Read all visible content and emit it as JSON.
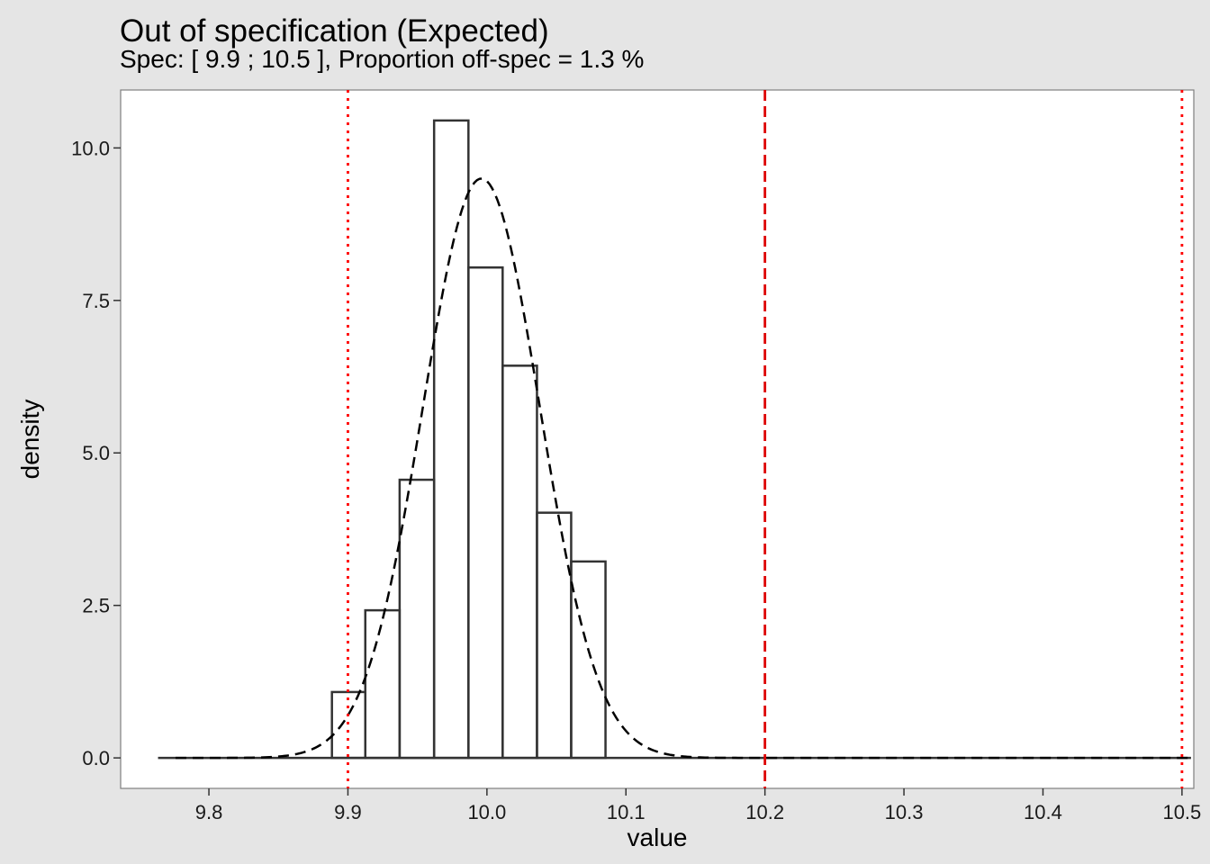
{
  "chart_data": {
    "type": "bar",
    "title": "Out of specification (Expected)",
    "subtitle": "Spec: [ 9.9 ; 10.5 ], Proportion off-spec =  1.3 %",
    "xlabel": "value",
    "ylabel": "density",
    "xlim": [
      9.7365,
      10.5085
    ],
    "ylim": [
      -0.5,
      10.95
    ],
    "x_ticks": [
      9.8,
      9.9,
      10.0,
      10.1,
      10.2,
      10.3,
      10.4,
      10.5
    ],
    "x_tick_labels": [
      "9.8",
      "9.9",
      "10.0",
      "10.1",
      "10.2",
      "10.3",
      "10.4",
      "10.5"
    ],
    "y_ticks": [
      0,
      2.5,
      5,
      7.5,
      10
    ],
    "y_tick_labels": [
      "0.0",
      "2.5",
      "5.0",
      "7.5",
      "10.0"
    ],
    "grid": false,
    "histogram": {
      "bins": [
        {
          "x0": 9.7634,
          "x1": 9.8885,
          "density": 0
        },
        {
          "x0": 9.8885,
          "x1": 9.9125,
          "density": 1.08
        },
        {
          "x0": 9.9125,
          "x1": 9.9372,
          "density": 2.42
        },
        {
          "x0": 9.9372,
          "x1": 9.962,
          "density": 4.56
        },
        {
          "x0": 9.962,
          "x1": 9.9867,
          "density": 10.45
        },
        {
          "x0": 9.9867,
          "x1": 10.0113,
          "density": 8.04
        },
        {
          "x0": 10.0113,
          "x1": 10.036,
          "density": 6.43
        },
        {
          "x0": 10.036,
          "x1": 10.0606,
          "density": 4.02
        },
        {
          "x0": 10.0606,
          "x1": 10.0853,
          "density": 3.22
        },
        {
          "x0": 10.0853,
          "x1": 10.5065,
          "density": 0
        }
      ]
    },
    "density_curve": {
      "distribution": "normal",
      "mean": 9.996,
      "sd": 0.042,
      "x_range": [
        9.776,
        10.505
      ],
      "line_style": "dashed",
      "color": "#000000"
    },
    "reference_lines": [
      {
        "x": 9.9,
        "style": "dotted",
        "color": "#ff0000"
      },
      {
        "x": 10.2,
        "style": "dashed",
        "color": "#dd0000"
      },
      {
        "x": 10.5,
        "style": "dotted",
        "color": "#ff0000"
      }
    ],
    "colors": {
      "bar_stroke": "#333333",
      "panel_bg": "#ffffff",
      "page_bg": "#e5e5e5"
    }
  }
}
